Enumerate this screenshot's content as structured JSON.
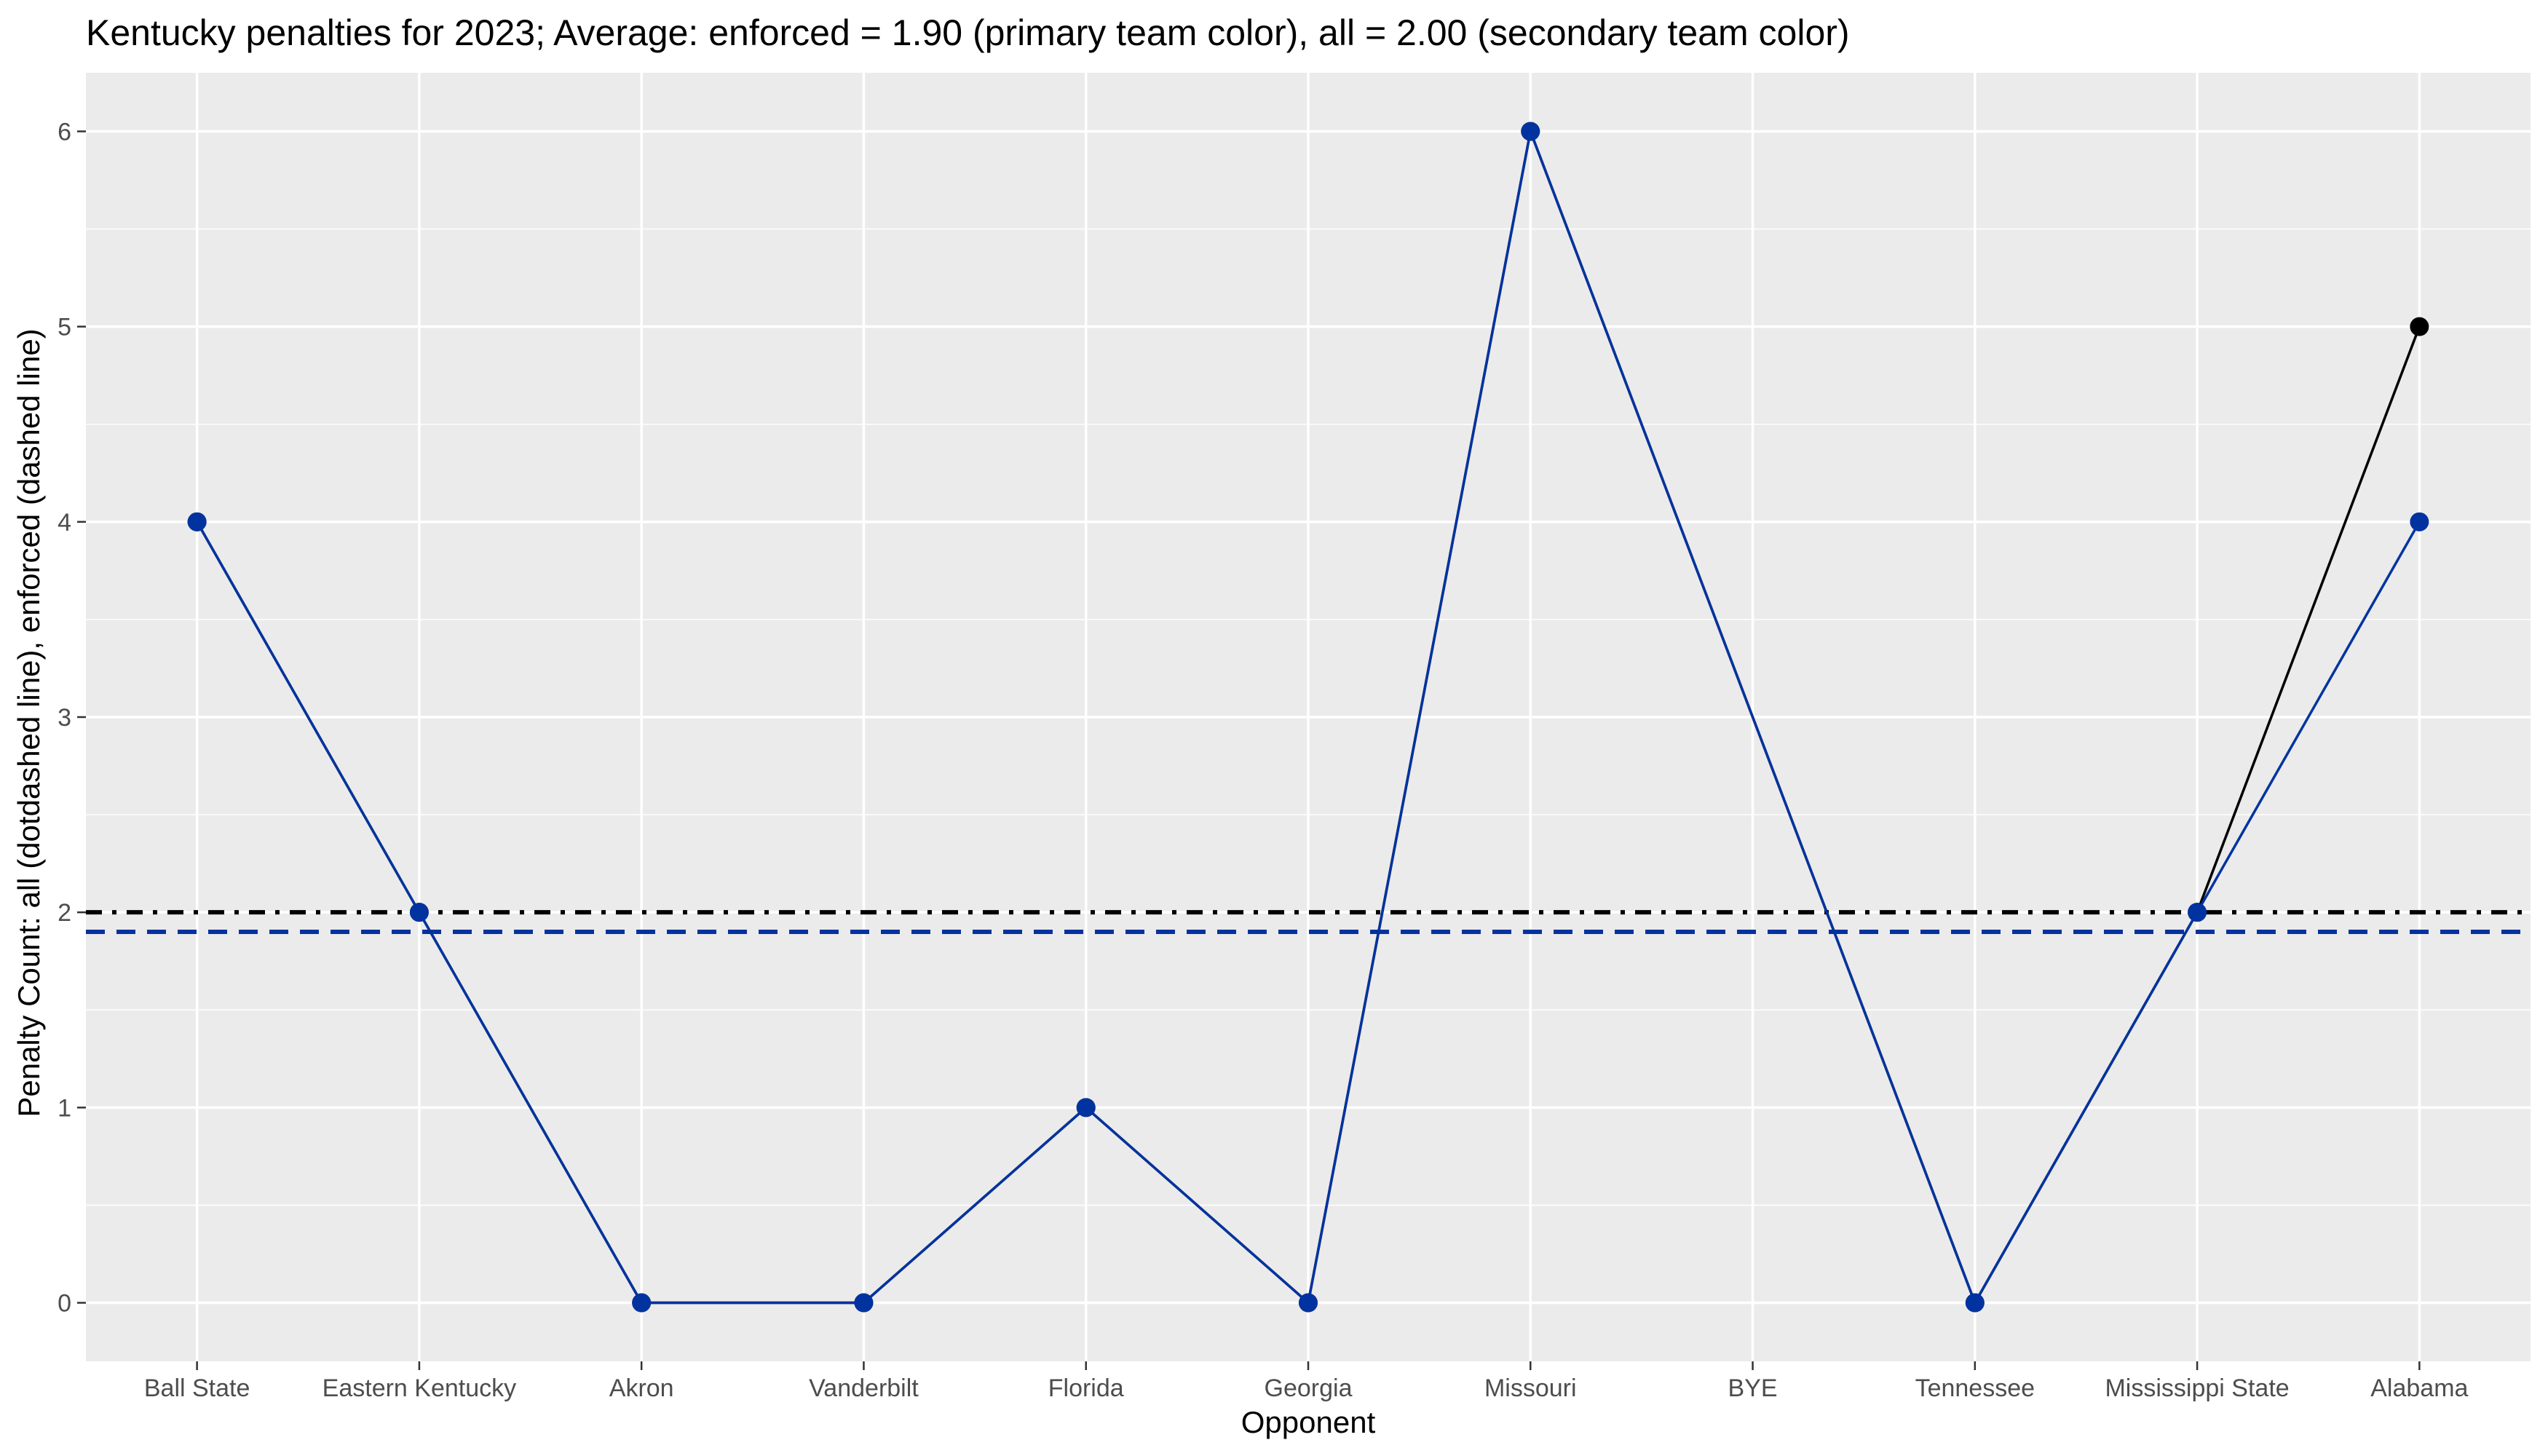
{
  "chart_data": {
    "type": "line",
    "title": "Kentucky penalties for 2023; Average: enforced = 1.90 (primary team color), all = 2.00 (secondary team color)",
    "xlabel": "Opponent",
    "ylabel": "Penalty Count: all (dotdashed line), enforced (dashed line)",
    "categories": [
      "Ball State",
      "Eastern Kentucky",
      "Akron",
      "Vanderbilt",
      "Florida",
      "Georgia",
      "Missouri",
      "BYE",
      "Tennessee",
      "Mississippi State",
      "Alabama"
    ],
    "ylim": [
      -0.3,
      6.3
    ],
    "yticks": [
      0,
      1,
      2,
      3,
      4,
      5,
      6
    ],
    "grid": true,
    "series": [
      {
        "role": "all",
        "color": "#000000",
        "values": [
          4,
          2,
          0,
          0,
          1,
          0,
          6,
          null,
          0,
          2,
          5
        ]
      },
      {
        "role": "enforced",
        "color": "#0033A0",
        "values": [
          4,
          2,
          0,
          0,
          1,
          0,
          6,
          null,
          0,
          2,
          4
        ]
      }
    ],
    "reference_lines": [
      {
        "role": "all average",
        "value": 2.0,
        "style": "dotdash",
        "color": "#000000"
      },
      {
        "role": "enforced average",
        "value": 1.9,
        "style": "dashed",
        "color": "#0033A0"
      }
    ],
    "panel_background": "#EBEBEB",
    "grid_color": "#FFFFFF"
  }
}
